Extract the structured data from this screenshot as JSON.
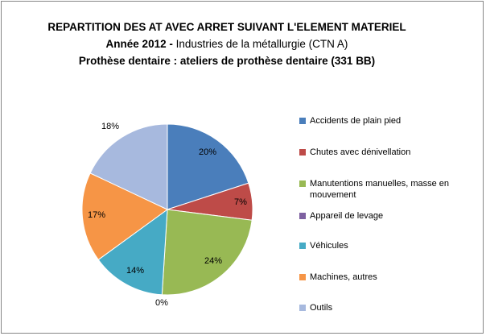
{
  "chart_data": {
    "type": "pie",
    "title_line1": "REPARTITION DES AT AVEC ARRET SUIVANT L'ELEMENT MATERIEL",
    "title_line2_bold": "Année 2012  - ",
    "title_line2_normal": " Industries de la métallurgie (CTN A)",
    "title_line3": "Prothèse dentaire : ateliers de prothèse dentaire (331 BB)",
    "legend_position": "right",
    "slices": [
      {
        "label": "Accidents de plain pied",
        "value": 20,
        "display": "20%",
        "color": "#4a7ebb"
      },
      {
        "label": "Chutes avec dénivellation",
        "value": 7,
        "display": "7%",
        "color": "#be4b48"
      },
      {
        "label": "Manutentions manuelles, masse en mouvement",
        "value": 24,
        "display": "24%",
        "color": "#98b954"
      },
      {
        "label": "Appareil de levage",
        "value": 0,
        "display": "0%",
        "color": "#7d60a0"
      },
      {
        "label": "Véhicules",
        "value": 14,
        "display": "14%",
        "color": "#46aac5"
      },
      {
        "label": "Machines, autres",
        "value": 17,
        "display": "17%",
        "color": "#f69546"
      },
      {
        "label": "Outils",
        "value": 18,
        "display": "18%",
        "color": "#a7b9de"
      }
    ]
  }
}
